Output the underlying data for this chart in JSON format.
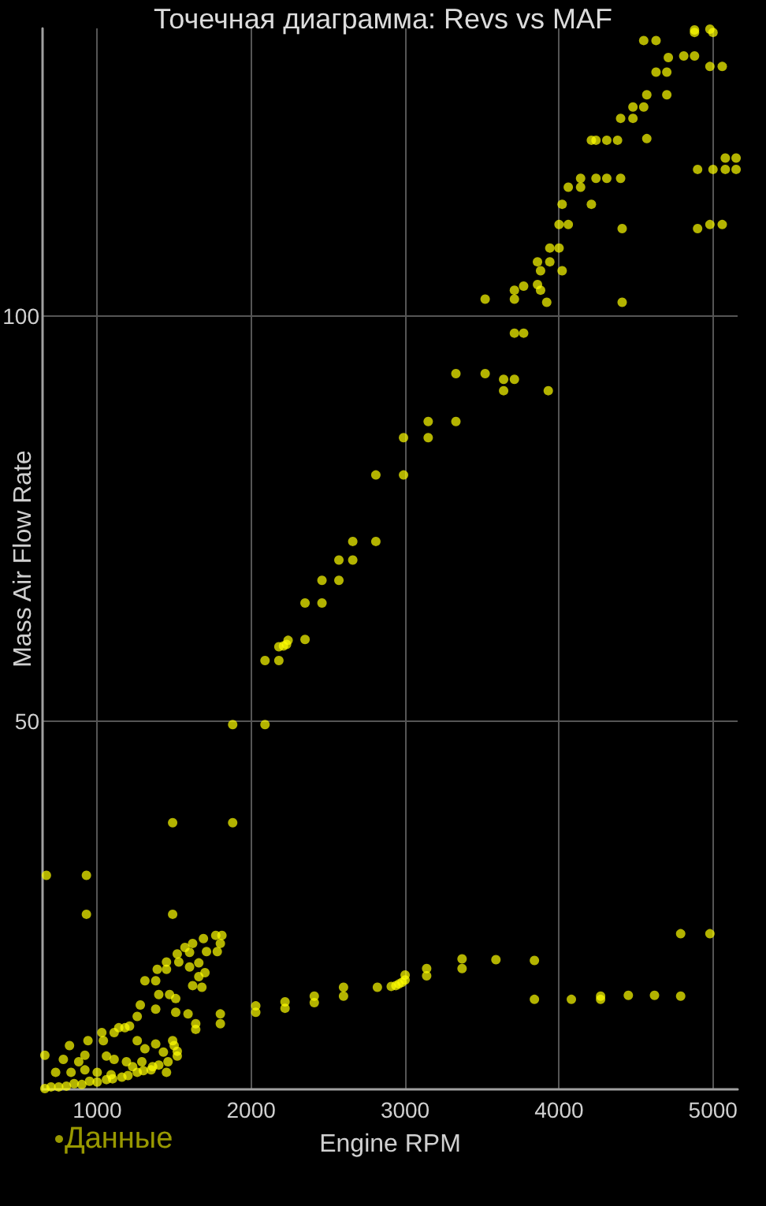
{
  "chart_data": {
    "type": "scatter",
    "title": "Точечная диаграмма: Revs vs MAF",
    "xlabel": "Engine RPM",
    "ylabel": "Mass Air Flow Rate",
    "xlim": [
      645,
      5160
    ],
    "ylim": [
      4.6,
      135.5
    ],
    "xticks": [
      1000,
      2000,
      3000,
      4000,
      5000
    ],
    "yticks": [
      50,
      100
    ],
    "grid": true,
    "legend": "bottom left",
    "marker": "circle",
    "x": [
      4880,
      4980,
      5000,
      4880,
      4550,
      4630,
      4810,
      4880,
      4710,
      4630,
      4700,
      4980,
      5060,
      4700,
      4570,
      4480,
      4550,
      4400,
      4480,
      4570,
      4210,
      4240,
      4310,
      4380,
      5080,
      5150,
      4900,
      5000,
      5080,
      5150,
      4140,
      4240,
      4310,
      4400,
      4060,
      4140,
      4210,
      4020,
      4000,
      4060,
      4410,
      4900,
      4980,
      5060,
      3940,
      4000,
      3860,
      3940,
      3880,
      4020,
      3710,
      3770,
      3860,
      3880,
      3520,
      3710,
      3920,
      4410,
      3710,
      3770,
      3330,
      3520,
      3640,
      3710,
      3640,
      3930,
      3150,
      3330,
      2990,
      3150,
      2810,
      2990,
      2660,
      2810,
      2570,
      2660,
      2460,
      2570,
      2350,
      2460,
      2350,
      2180,
      2210,
      2230,
      2240,
      2090,
      2180,
      1880,
      2090,
      1490,
      1880,
      670,
      930,
      930,
      1490,
      1770,
      1810,
      1800,
      1690,
      1620,
      1570,
      1600,
      1780,
      1710,
      1520,
      1530,
      1450,
      1660,
      1600,
      1390,
      1450,
      1700,
      1660,
      1620,
      1680,
      1310,
      1380,
      1400,
      1470,
      1510,
      1280,
      1380,
      1510,
      1590,
      1800,
      1800,
      1640,
      1640,
      1260,
      1210,
      1140,
      1180,
      1030,
      1110,
      940,
      1040,
      820,
      1260,
      1310,
      1380,
      1490,
      1500,
      1430,
      1520,
      660,
      920,
      1060,
      780,
      880,
      1110,
      1190,
      1290,
      730,
      830,
      920,
      1000,
      1090,
      1230,
      1350,
      1450,
      660,
      750,
      850,
      950,
      1060,
      1160,
      1260,
      1360,
      1460,
      1520,
      700,
      800,
      900,
      1000,
      1100,
      1200,
      1300,
      1400,
      2030,
      2030,
      2220,
      2220,
      2410,
      2410,
      2600,
      2600,
      2820,
      2910,
      2940,
      2960,
      2980,
      3000,
      3000,
      3140,
      3140,
      3370,
      3370,
      3590,
      3840,
      3840,
      4080,
      4270,
      4270,
      4450,
      4620,
      4790,
      4790,
      4980
    ],
    "series": [
      {
        "name": "Данные",
        "color": "#ffff00",
        "values": [
          135.3,
          135.4,
          135.0,
          135.0,
          134.0,
          134.0,
          132.1,
          132.1,
          131.9,
          130.1,
          130.1,
          130.8,
          130.8,
          127.3,
          127.3,
          125.8,
          125.8,
          124.4,
          124.4,
          121.9,
          121.7,
          121.7,
          121.7,
          121.7,
          119.5,
          119.5,
          118.1,
          118.1,
          118.1,
          118.1,
          117.0,
          117.0,
          117.0,
          117.0,
          115.9,
          115.9,
          113.8,
          113.8,
          111.3,
          111.3,
          110.8,
          110.8,
          111.3,
          111.3,
          108.4,
          108.4,
          106.7,
          106.7,
          105.6,
          105.6,
          103.2,
          103.7,
          103.9,
          103.2,
          102.1,
          102.1,
          101.7,
          101.7,
          97.9,
          97.9,
          92.9,
          92.9,
          92.2,
          92.2,
          90.8,
          90.8,
          87.0,
          87.0,
          85.0,
          85.0,
          80.4,
          80.4,
          72.2,
          72.2,
          69.9,
          69.9,
          67.4,
          67.4,
          64.6,
          64.6,
          60.1,
          59.2,
          59.3,
          59.5,
          60.0,
          57.5,
          57.5,
          49.6,
          49.6,
          37.5,
          37.5,
          31.0,
          31.0,
          26.2,
          26.2,
          23.6,
          23.6,
          22.6,
          23.2,
          22.6,
          22.1,
          21.5,
          21.6,
          21.6,
          21.3,
          20.3,
          20.3,
          20.2,
          19.7,
          19.4,
          19.4,
          19.0,
          18.5,
          17.4,
          17.2,
          18.0,
          18.0,
          16.3,
          16.3,
          15.8,
          15.0,
          14.5,
          14.1,
          13.9,
          13.9,
          12.7,
          12.7,
          12.0,
          13.6,
          12.4,
          12.2,
          12.2,
          11.6,
          11.6,
          10.6,
          10.6,
          10.0,
          10.6,
          9.6,
          10.2,
          10.6,
          10.0,
          9.2,
          9.3,
          8.8,
          8.8,
          8.7,
          8.3,
          8.0,
          8.3,
          8.0,
          8.0,
          6.7,
          6.7,
          7.0,
          6.7,
          6.4,
          7.4,
          7.0,
          6.7,
          4.7,
          4.9,
          5.3,
          5.6,
          5.8,
          6.1,
          6.7,
          7.4,
          8.0,
          8.7,
          4.9,
          5.0,
          5.2,
          5.5,
          5.9,
          6.3,
          6.9,
          7.6,
          14.9,
          14.1,
          15.4,
          14.6,
          16.1,
          15.3,
          17.2,
          16.1,
          17.2,
          17.3,
          17.4,
          17.6,
          17.8,
          18.1,
          18.7,
          19.5,
          18.6,
          20.7,
          19.5,
          20.6,
          20.5,
          15.7,
          15.7,
          16.1,
          15.7,
          16.2,
          16.2,
          16.1,
          23.8,
          23.8
        ]
      }
    ]
  }
}
